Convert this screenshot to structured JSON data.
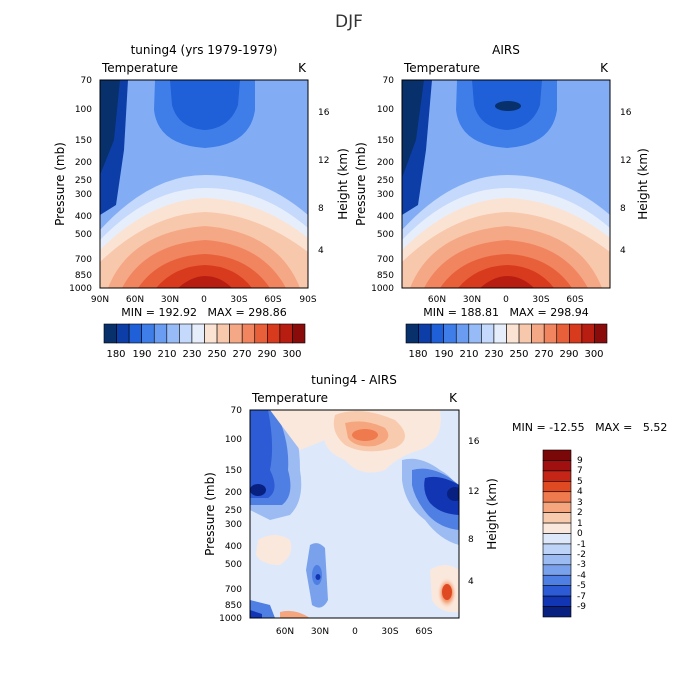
{
  "figure": {
    "title": "DJF"
  },
  "chart_data": [
    {
      "type": "heatmap",
      "title": "tuning4 (yrs 1979-1979)",
      "variable": "Temperature",
      "units": "K",
      "ylabel": "Pressure (mb)",
      "y2label": "Height (km)",
      "pressure_ticks": [
        "70",
        "100",
        "150",
        "200",
        "250",
        "300",
        "400",
        "500",
        "700",
        "850",
        "1000"
      ],
      "height_ticks": [
        "16",
        "12",
        "8",
        "4"
      ],
      "lat_ticks": [
        "90N",
        "60N",
        "30N",
        "0",
        "30S",
        "60S",
        "90S"
      ],
      "stats": "MIN = 192.92   MAX = 298.86",
      "colorbar_labels": [
        "180",
        "190",
        "210",
        "230",
        "250",
        "270",
        "290",
        "300"
      ]
    },
    {
      "type": "heatmap",
      "title": "AIRS",
      "variable": "Temperature",
      "units": "K",
      "ylabel": "Pressure (mb)",
      "y2label": "Height (km)",
      "pressure_ticks": [
        "70",
        "100",
        "150",
        "200",
        "250",
        "300",
        "400",
        "500",
        "700",
        "850",
        "1000"
      ],
      "height_ticks": [
        "16",
        "12",
        "8",
        "4"
      ],
      "lat_ticks": [
        "60N",
        "30N",
        "0",
        "30S",
        "60S"
      ],
      "stats": "MIN = 188.81   MAX = 298.94",
      "colorbar_labels": [
        "180",
        "190",
        "210",
        "230",
        "250",
        "270",
        "290",
        "300"
      ]
    },
    {
      "type": "heatmap",
      "title": "tuning4 - AIRS",
      "variable": "Temperature",
      "units": "K",
      "ylabel": "Pressure (mb)",
      "y2label": "Height (km)",
      "pressure_ticks": [
        "70",
        "100",
        "150",
        "200",
        "250",
        "300",
        "400",
        "500",
        "700",
        "850",
        "1000"
      ],
      "height_ticks": [
        "16",
        "12",
        "8",
        "4"
      ],
      "lat_ticks": [
        "60N",
        "30N",
        "0",
        "30S",
        "60S"
      ],
      "stats": "MIN = -12.55   MAX =   5.52",
      "colorbar_labels": [
        "9",
        "7",
        "5",
        "4",
        "3",
        "2",
        "1",
        "0",
        "-1",
        "-2",
        "-3",
        "-4",
        "-5",
        "-7",
        "-9"
      ]
    }
  ],
  "colors": {
    "abs_scale": [
      "#08306b",
      "#0d3ea8",
      "#1f5fd8",
      "#3f7ee8",
      "#6a9cf2",
      "#96bbf7",
      "#c4d9fb",
      "#e6eefc",
      "#fbe3d3",
      "#f8c8ad",
      "#f5a886",
      "#f08560",
      "#e8603a",
      "#d83a1e",
      "#b81d12",
      "#8a0c0a"
    ],
    "diff_scale": [
      "#7a0808",
      "#a01010",
      "#c42516",
      "#e04a22",
      "#ee7a4e",
      "#f5a67f",
      "#f9cbae",
      "#fbe8dc",
      "#dde9fb",
      "#bdd3f7",
      "#9bbbf2",
      "#7aa2ec",
      "#4f7fe2",
      "#2c5bd5",
      "#1236b3",
      "#08207f"
    ]
  }
}
